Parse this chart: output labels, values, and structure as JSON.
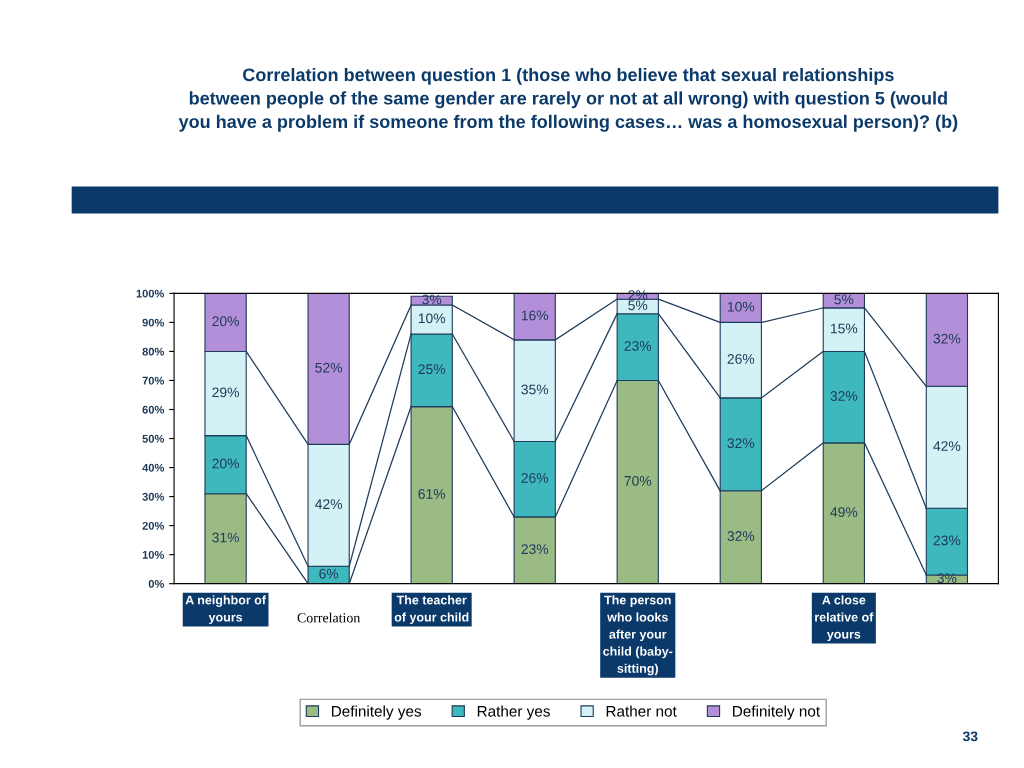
{
  "chart_data": {
    "type": "bar",
    "stacked": true,
    "title": "Correlation between question 1 (those who believe that sexual relationships\nbetween people of the same gender are rarely or not at all wrong) with question 5 (would\nyou have a problem if someone from the following cases… was a homosexual person)? (b)",
    "categories": [
      "A neighbor of\nyours",
      null,
      "The teacher\nof your child",
      null,
      "The person\nwho looks\nafter your\nchild (baby-\nsitting)",
      null,
      "A close\nrelative of\nyours",
      null
    ],
    "series": [
      {
        "name": "Definitely yes",
        "color": "#9bbb85",
        "values": [
          31,
          0,
          61,
          23,
          70,
          32,
          48.5,
          3
        ],
        "value_labels": [
          "31%",
          null,
          "61%",
          "23%",
          "70%",
          "32%",
          "49%",
          "3%"
        ]
      },
      {
        "name": "Rather yes",
        "color": "#3fb8bd",
        "values": [
          20,
          6,
          25,
          26,
          23,
          32,
          31.5,
          23
        ],
        "value_labels": [
          "20%",
          "6%",
          "25%",
          "26%",
          "23%",
          "32%",
          "32%",
          "23%"
        ]
      },
      {
        "name": "Rather not",
        "color": "#d4f2f5",
        "values": [
          29,
          42,
          10,
          35,
          5,
          26,
          15,
          42
        ],
        "value_labels": [
          "29%",
          "42%",
          "10%",
          "35%",
          "5%",
          "26%",
          "15%",
          "42%"
        ]
      },
      {
        "name": "Definitely not",
        "color": "#b28fd8",
        "values": [
          20,
          52,
          3,
          16,
          2,
          10,
          5,
          32
        ],
        "value_labels": [
          "20%",
          "52%",
          "3%",
          "16%",
          "2%",
          "10%",
          "5%",
          "32%"
        ]
      }
    ],
    "ylim": [
      0,
      100
    ],
    "yticks": [
      {
        "value": 0,
        "label": "0%"
      },
      {
        "value": 10,
        "label": "10%"
      },
      {
        "value": 20,
        "label": "20%"
      },
      {
        "value": 30,
        "label": "30%"
      },
      {
        "value": 40,
        "label": "40%"
      },
      {
        "value": 50,
        "label": "50%"
      },
      {
        "value": 60,
        "label": "60%"
      },
      {
        "value": 70,
        "label": "70%"
      },
      {
        "value": 80,
        "label": "80%"
      },
      {
        "value": 90,
        "label": "90%"
      },
      {
        "value": 100,
        "label": "100%"
      }
    ],
    "grid": false,
    "legend": "bottom",
    "annotations": [
      "Correlation",
      "33"
    ]
  }
}
